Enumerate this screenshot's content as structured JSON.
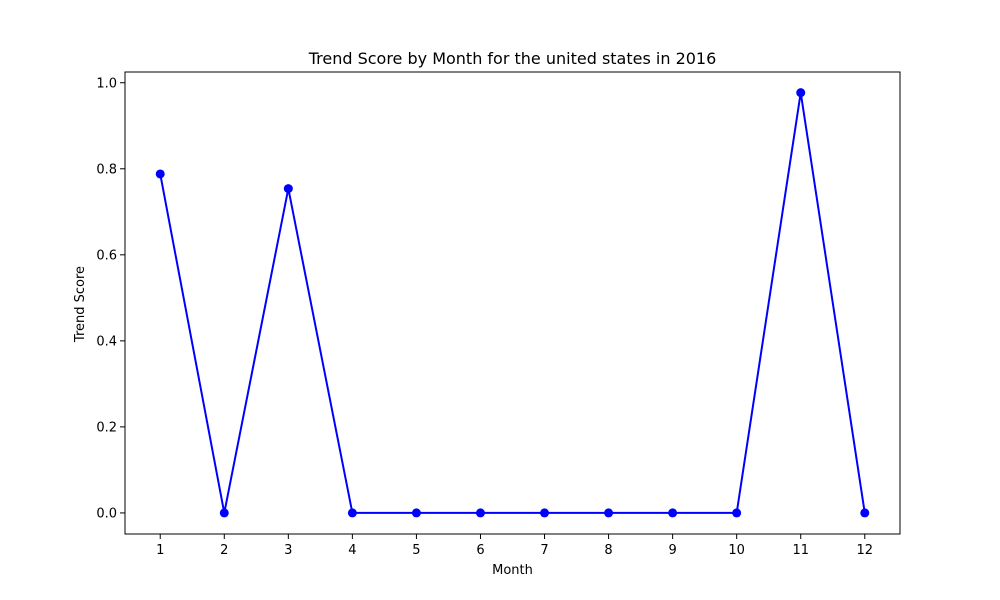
{
  "chart_data": {
    "type": "line",
    "title": "Trend Score by Month for the united states in 2016",
    "xlabel": "Month",
    "ylabel": "Trend Score",
    "x": [
      1,
      2,
      3,
      4,
      5,
      6,
      7,
      8,
      9,
      10,
      11,
      12
    ],
    "series": [
      {
        "values": [
          0.788,
          0.0,
          0.754,
          0.0,
          0.0,
          0.0,
          0.0,
          0.0,
          0.0,
          0.0,
          0.977,
          0.0
        ],
        "color": "#0000ff",
        "marker": "circle"
      }
    ],
    "xlim": [
      0.45,
      12.55
    ],
    "ylim": [
      -0.049,
      1.025
    ],
    "xticks": [
      "1",
      "2",
      "3",
      "4",
      "5",
      "6",
      "7",
      "8",
      "9",
      "10",
      "11",
      "12"
    ],
    "yticks": [
      "0.0",
      "0.2",
      "0.4",
      "0.6",
      "0.8",
      "1.0"
    ],
    "ytick_values": [
      0.0,
      0.2,
      0.4,
      0.6,
      0.8,
      1.0
    ],
    "grid": false,
    "legend": "none"
  }
}
